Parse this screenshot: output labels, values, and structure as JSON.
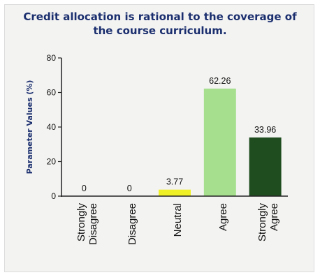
{
  "chart_data": {
    "type": "bar",
    "title_lines": [
      "Credit allocation is rational to the coverage of",
      "the course curriculum."
    ],
    "ylabel": "Parameter Values (%)",
    "xlabel": "",
    "ylim": [
      0,
      80
    ],
    "yticks": [
      0,
      20,
      40,
      60,
      80
    ],
    "grid": false,
    "legend": "none",
    "categories": [
      [
        "Strongly",
        "Disagree"
      ],
      [
        "Disagree"
      ],
      [
        "Neutral"
      ],
      [
        "Agree"
      ],
      [
        "Strongly",
        "Agree"
      ]
    ],
    "values": [
      0,
      0,
      3.77,
      62.26,
      33.96
    ],
    "data_labels": [
      "0",
      "0",
      "3.77",
      "62.26",
      "33.96"
    ],
    "colors": [
      "#ffffff",
      "#ffffff",
      "#f0f026",
      "#a6e08f",
      "#1f4d1f"
    ]
  }
}
